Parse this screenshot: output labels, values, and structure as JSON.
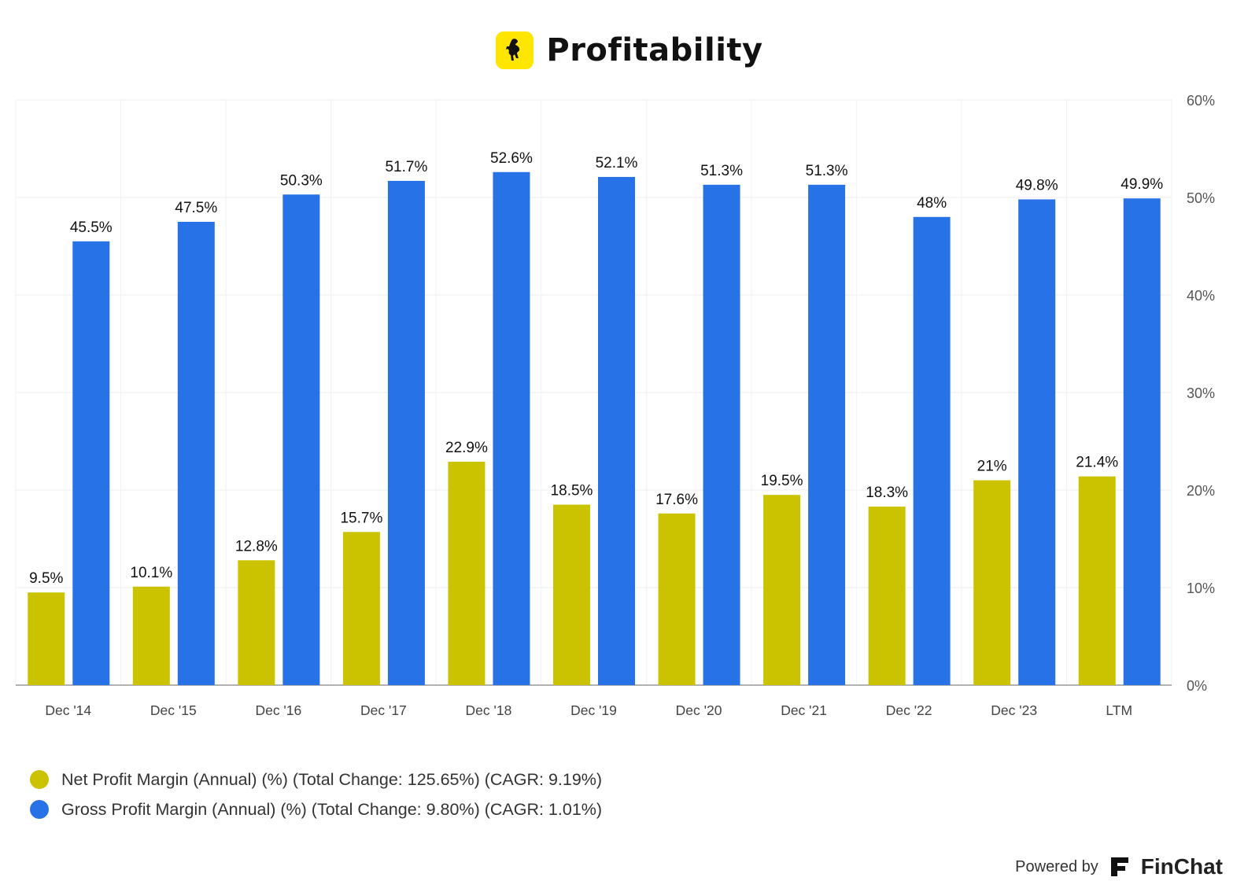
{
  "header": {
    "title": "Profitability",
    "logo_icon": "prancing-horse-icon",
    "logo_color": "#ffe600"
  },
  "chart_data": {
    "type": "bar",
    "title": "Profitability",
    "categories": [
      "Dec '14",
      "Dec '15",
      "Dec '16",
      "Dec '17",
      "Dec '18",
      "Dec '19",
      "Dec '20",
      "Dec '21",
      "Dec '22",
      "Dec '23",
      "LTM"
    ],
    "series": [
      {
        "name": "Net Profit Margin (Annual) (%) (Total Change: 125.65%) (CAGR: 9.19%)",
        "color": "#cbc300",
        "values": [
          9.5,
          10.1,
          12.8,
          15.7,
          22.9,
          18.5,
          17.6,
          19.5,
          18.3,
          21,
          21.4
        ],
        "labels": [
          "9.5%",
          "10.1%",
          "12.8%",
          "15.7%",
          "22.9%",
          "18.5%",
          "17.6%",
          "19.5%",
          "18.3%",
          "21%",
          "21.4%"
        ]
      },
      {
        "name": "Gross Profit Margin (Annual) (%) (Total Change: 9.80%) (CAGR: 1.01%)",
        "color": "#2872e8",
        "values": [
          45.5,
          47.5,
          50.3,
          51.7,
          52.6,
          52.1,
          51.3,
          51.3,
          48,
          49.8,
          49.9
        ],
        "labels": [
          "45.5%",
          "47.5%",
          "50.3%",
          "51.7%",
          "52.6%",
          "52.1%",
          "51.3%",
          "51.3%",
          "48%",
          "49.8%",
          "49.9%"
        ]
      }
    ],
    "yticks": [
      {
        "value": 0,
        "label": "0%"
      },
      {
        "value": 10,
        "label": "10%"
      },
      {
        "value": 20,
        "label": "20%"
      },
      {
        "value": 30,
        "label": "30%"
      },
      {
        "value": 40,
        "label": "40%"
      },
      {
        "value": 50,
        "label": "50%"
      },
      {
        "value": 60,
        "label": "60%"
      }
    ],
    "ylim": [
      0,
      60
    ],
    "y_axis_side": "right",
    "grid": true,
    "legend_position": "bottom-left"
  },
  "footer": {
    "powered_by": "Powered by",
    "brand": "FinChat",
    "brand_icon": "finchat-logo-icon"
  }
}
